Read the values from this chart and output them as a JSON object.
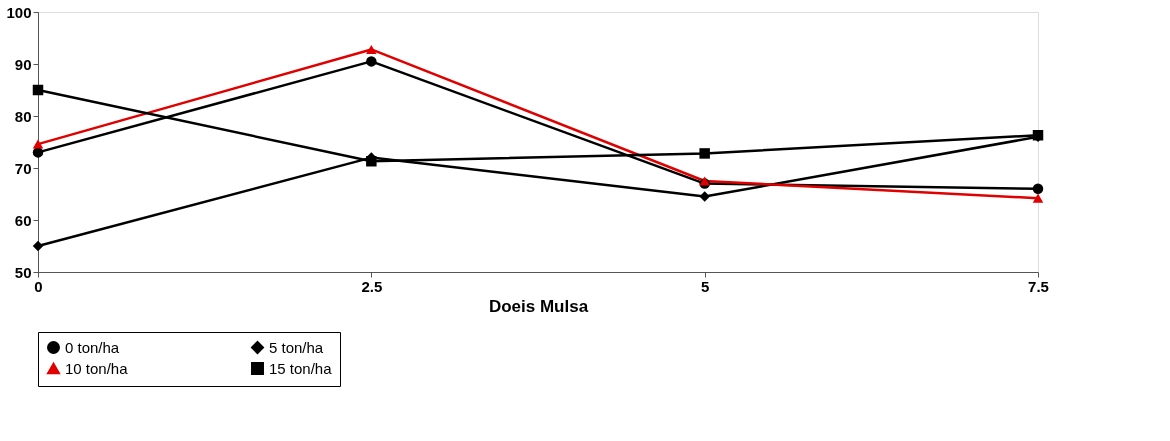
{
  "chart_data": {
    "type": "line",
    "xlabel": "Doeis Mulsa",
    "x": [
      0,
      2.5,
      5,
      7.5
    ],
    "xlim": [
      0,
      7.5
    ],
    "xticks": [
      0,
      2.5,
      5,
      7.5
    ],
    "ylim": [
      50,
      100
    ],
    "yticks": [
      50,
      60,
      70,
      80,
      90,
      100
    ],
    "grid": false,
    "legend": "bottom",
    "line_style": "solid",
    "series": [
      {
        "name": "0 ton/ha",
        "color": "#000000",
        "marker": "circle",
        "values": [
          73,
          90.5,
          67,
          66
        ]
      },
      {
        "name": "5 ton/ha",
        "color": "#000000",
        "marker": "diamond",
        "values": [
          55,
          72,
          64.5,
          76
        ]
      },
      {
        "name": "10 ton/ha",
        "color": "#e00000",
        "marker": "triangle",
        "values": [
          74.6,
          92.8,
          67.5,
          64.2
        ]
      },
      {
        "name": "15 ton/ha",
        "color": "#000000",
        "marker": "square",
        "values": [
          85,
          71.3,
          72.8,
          76.3
        ]
      }
    ]
  }
}
